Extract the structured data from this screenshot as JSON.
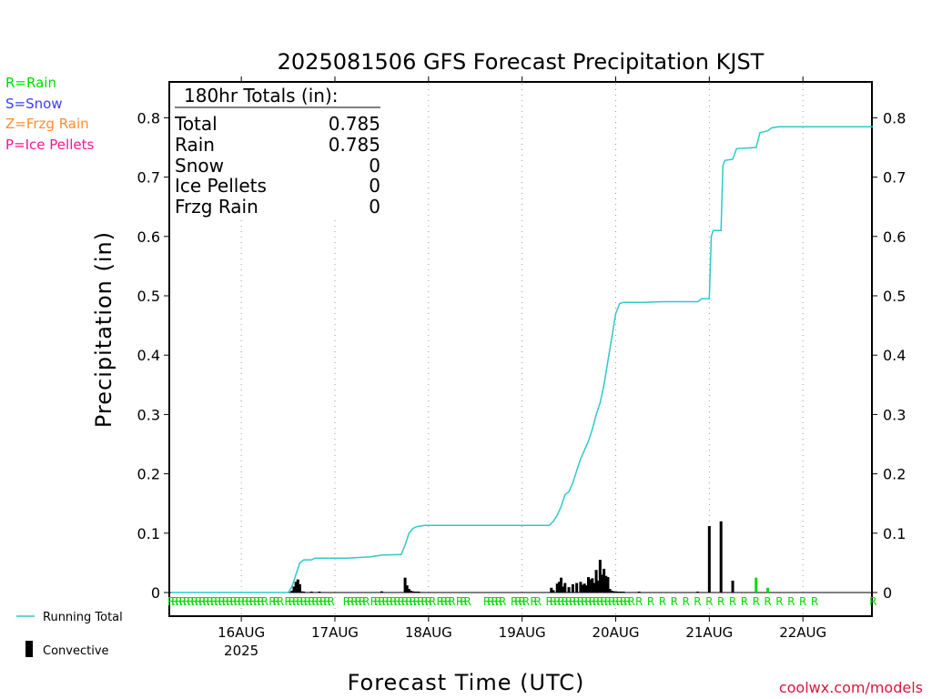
{
  "chart_data": {
    "type": "bar",
    "title": "2025081506 GFS Forecast Precipitation KJST",
    "xlabel": "Forecast Time (UTC)",
    "ylabel": "Precipitation (in)",
    "ylim": [
      0,
      0.8
    ],
    "yticks": [
      "0",
      "0.1",
      "0.2",
      "0.3",
      "0.4",
      "0.5",
      "0.6",
      "0.7",
      "0.8"
    ],
    "x_unit": "hours since 2025-08-15 06 UTC",
    "xlim": [
      0,
      180
    ],
    "x_ticks": [
      {
        "hour": 18,
        "label": "16AUG",
        "sublabel": "2025"
      },
      {
        "hour": 42,
        "label": "17AUG",
        "sublabel": ""
      },
      {
        "hour": 66,
        "label": "18AUG",
        "sublabel": ""
      },
      {
        "hour": 90,
        "label": "19AUG",
        "sublabel": ""
      },
      {
        "hour": 114,
        "label": "20AUG",
        "sublabel": ""
      },
      {
        "hour": 138,
        "label": "21AUG",
        "sublabel": ""
      },
      {
        "hour": 162,
        "label": "22AUG",
        "sublabel": ""
      }
    ],
    "grid": "vertical dotted at day boundaries",
    "series": [
      {
        "name": "Running Total",
        "type": "line",
        "color": "#30c8c8",
        "points": [
          [
            0,
            0
          ],
          [
            30,
            0
          ],
          [
            31,
            0.01
          ],
          [
            32,
            0.03
          ],
          [
            33,
            0.05
          ],
          [
            34,
            0.055
          ],
          [
            36,
            0.055
          ],
          [
            37,
            0.058
          ],
          [
            39,
            0.058
          ],
          [
            45,
            0.058
          ],
          [
            51,
            0.06
          ],
          [
            54,
            0.063
          ],
          [
            59,
            0.064
          ],
          [
            60,
            0.08
          ],
          [
            61,
            0.1
          ],
          [
            62,
            0.108
          ],
          [
            63,
            0.111
          ],
          [
            65,
            0.113
          ],
          [
            93,
            0.113
          ],
          [
            97,
            0.113
          ],
          [
            98,
            0.12
          ],
          [
            99,
            0.13
          ],
          [
            100,
            0.145
          ],
          [
            101,
            0.165
          ],
          [
            102,
            0.17
          ],
          [
            103,
            0.185
          ],
          [
            104,
            0.205
          ],
          [
            105,
            0.225
          ],
          [
            106,
            0.24
          ],
          [
            107,
            0.255
          ],
          [
            108,
            0.275
          ],
          [
            109,
            0.3
          ],
          [
            110,
            0.32
          ],
          [
            111,
            0.35
          ],
          [
            112,
            0.39
          ],
          [
            113,
            0.43
          ],
          [
            114,
            0.47
          ],
          [
            115,
            0.487
          ],
          [
            116,
            0.489
          ],
          [
            121,
            0.489
          ],
          [
            126,
            0.49
          ],
          [
            135,
            0.49
          ],
          [
            136,
            0.495
          ],
          [
            138,
            0.495
          ],
          [
            138.5,
            0.6
          ],
          [
            139,
            0.61
          ],
          [
            141,
            0.61
          ],
          [
            141.5,
            0.72
          ],
          [
            142,
            0.728
          ],
          [
            144,
            0.73
          ],
          [
            145,
            0.748
          ],
          [
            150,
            0.75
          ],
          [
            151,
            0.775
          ],
          [
            153,
            0.778
          ],
          [
            154,
            0.783
          ],
          [
            156,
            0.785
          ],
          [
            180,
            0.785
          ]
        ]
      },
      {
        "name": "Convective",
        "type": "bar",
        "color": "#000000",
        "x": [
          31,
          31.5,
          32,
          32.5,
          33,
          33.5,
          34,
          36,
          38,
          54,
          60,
          60.5,
          61,
          61.5,
          62,
          62.5,
          63,
          63.5,
          97.5,
          98,
          99,
          99.5,
          100,
          100.5,
          101,
          102,
          103,
          104,
          105,
          105.5,
          106,
          106.5,
          107,
          107.5,
          108,
          108.5,
          109,
          109.5,
          110,
          110.5,
          111,
          111.5,
          112,
          112.5,
          113,
          113.5,
          114,
          114.5,
          115,
          115.5,
          116,
          120,
          135,
          138,
          141,
          144,
          150,
          153
        ],
        "values": [
          0.003,
          0.01,
          0.018,
          0.022,
          0.014,
          0.002,
          0.001,
          0.001,
          0.001,
          0.002,
          0.025,
          0.012,
          0.006,
          0.003,
          0.002,
          0.001,
          0.001,
          0.001,
          0.008,
          0.004,
          0.015,
          0.018,
          0.025,
          0.01,
          0.016,
          0.009,
          0.014,
          0.016,
          0.018,
          0.013,
          0.015,
          0.012,
          0.026,
          0.022,
          0.024,
          0.016,
          0.038,
          0.02,
          0.055,
          0.03,
          0.04,
          0.028,
          0.026,
          0.006,
          0.003,
          0.002,
          0.002,
          0.001,
          0.001,
          0.001,
          0.001,
          0.001,
          0.001,
          0.112,
          0.12,
          0.02,
          0.001,
          0.001
        ]
      },
      {
        "name": "Total",
        "type": "bar",
        "color": "#00dc00",
        "x": [
          150,
          153
        ],
        "values": [
          0.025,
          0.008
        ]
      }
    ],
    "type_markers": {
      "color": "#00dc00",
      "letter": "R",
      "hours": [
        0,
        1,
        2,
        3,
        4,
        5,
        6,
        7,
        8,
        9,
        10,
        11,
        12,
        13,
        14,
        15,
        16,
        17,
        18,
        19,
        20,
        21,
        22,
        23,
        24,
        26,
        27,
        28,
        30,
        31,
        32,
        33,
        34,
        35,
        36,
        37,
        38,
        39,
        40,
        41,
        45,
        46,
        47,
        48,
        49,
        50,
        52,
        53,
        54,
        55,
        56,
        57,
        58,
        59,
        60,
        61,
        62,
        63,
        64,
        65,
        66,
        67,
        69,
        70,
        71,
        72,
        74,
        75,
        76,
        81,
        82,
        83,
        84,
        85,
        88,
        89,
        90,
        91,
        93,
        94,
        97,
        98,
        99,
        100,
        101,
        102,
        103,
        104,
        105,
        106,
        107,
        108,
        109,
        110,
        111,
        112,
        113,
        114,
        115,
        116,
        117,
        118,
        120,
        123,
        126,
        129,
        132,
        135,
        138,
        141,
        144,
        147,
        150,
        153,
        156,
        159,
        162,
        165,
        180
      ]
    },
    "legend": [
      "R=Rain",
      "S=Snow",
      "Z=Frzg Rain",
      "P=Ice Pellets"
    ],
    "legend_colors": [
      "#00dc00",
      "#3c3cff",
      "#ff8c32",
      "#ff1493"
    ],
    "bottom_legend": [
      "Running Total",
      "Convective"
    ],
    "totals_box": {
      "title": "180hr Totals (in):",
      "rows": [
        {
          "label": "Total",
          "value": "0.785"
        },
        {
          "label": "Rain",
          "value": "0.785"
        },
        {
          "label": "Snow",
          "value": "0"
        },
        {
          "label": "Ice Pellets",
          "value": "0"
        },
        {
          "label": "Frzg Rain",
          "value": "0"
        }
      ]
    },
    "credit": "coolwx.com/models",
    "credit_color": "#dc143c"
  }
}
